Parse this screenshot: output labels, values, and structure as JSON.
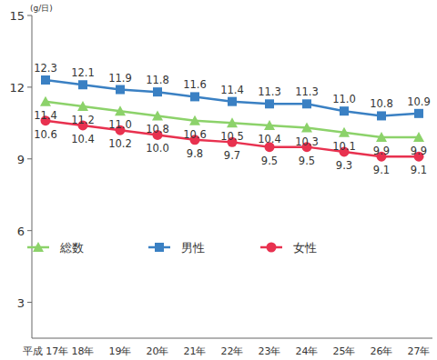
{
  "chart_data": {
    "type": "line",
    "y_label": "(g/日)",
    "categories": [
      "平成 17年",
      "18年",
      "19年",
      "20年",
      "21年",
      "22年",
      "23年",
      "24年",
      "25年",
      "26年",
      "27年"
    ],
    "series": [
      {
        "name": "総数",
        "color": "#8cd26a",
        "marker": "triangle",
        "values": [
          11.4,
          11.2,
          11.0,
          10.8,
          10.6,
          10.5,
          10.4,
          10.3,
          10.1,
          9.9,
          9.9
        ]
      },
      {
        "name": "男性",
        "color": "#3a80c3",
        "marker": "square",
        "values": [
          12.3,
          12.1,
          11.9,
          11.8,
          11.6,
          11.4,
          11.3,
          11.3,
          11.0,
          10.8,
          10.9
        ]
      },
      {
        "name": "女性",
        "color": "#e8314f",
        "marker": "circle",
        "values": [
          10.6,
          10.4,
          10.2,
          10.0,
          9.8,
          9.7,
          9.5,
          9.5,
          9.3,
          9.1,
          9.1
        ]
      }
    ],
    "ylim": [
      1.5,
      15
    ],
    "yticks": [
      3,
      6,
      9,
      12,
      15
    ],
    "grid": false,
    "data_labels": true,
    "legend": "lower left"
  }
}
